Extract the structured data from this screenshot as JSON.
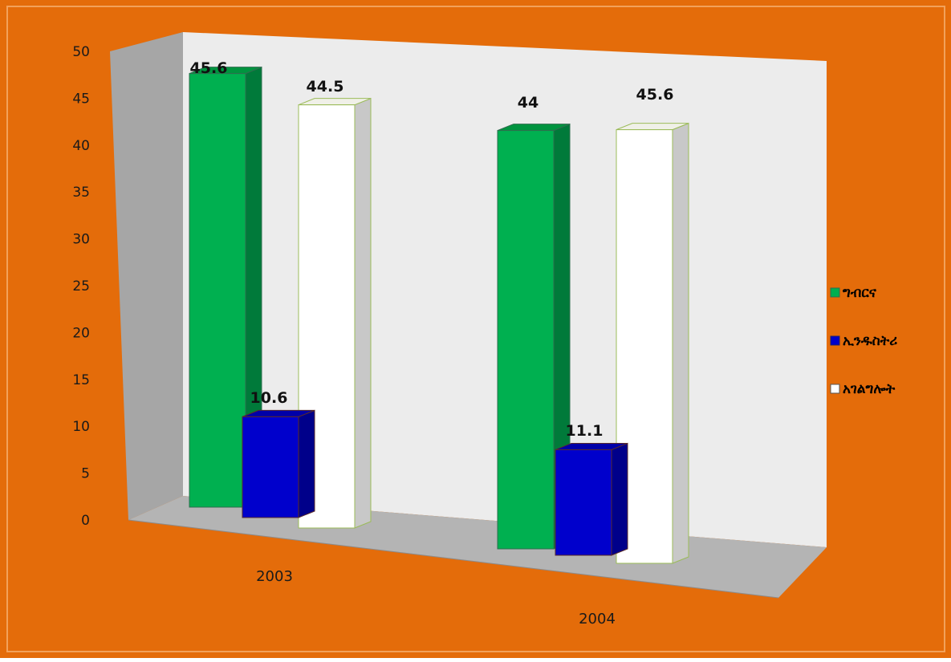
{
  "chart_data": {
    "type": "bar",
    "title": "",
    "xlabel": "",
    "ylabel": "",
    "categories": [
      "2003",
      "2004"
    ],
    "ylim": [
      0,
      50
    ],
    "yticks": [
      "0",
      "5",
      "10",
      "15",
      "20",
      "25",
      "30",
      "35",
      "40",
      "45",
      "50"
    ],
    "series": [
      {
        "name": "ግብርና",
        "values": [
          45.6,
          44
        ],
        "color": "#00b050",
        "side_color": "#007a3a",
        "top_color": "#00943f",
        "labels": [
          "45.6",
          "44"
        ]
      },
      {
        "name": "ኢንዱስትሪ",
        "values": [
          10.6,
          11.1
        ],
        "color": "#0000cc",
        "side_color": "#00008a",
        "top_color": "#0000a8",
        "labels": [
          "10.6",
          "11.1"
        ]
      },
      {
        "name": "አገልግሎት",
        "values": [
          44.5,
          45.6
        ],
        "color": "#ffffff",
        "side_color": "#c8c8c8",
        "top_color": "#f0f0e8",
        "labels": [
          "44.5",
          "45.6"
        ]
      }
    ],
    "grid": false,
    "legend_position": "right",
    "background_color": "#e46c0a",
    "wall_color": "#ececec",
    "side_wall_color": "#a6a6a6",
    "floor_color": "#b4b4b4"
  }
}
